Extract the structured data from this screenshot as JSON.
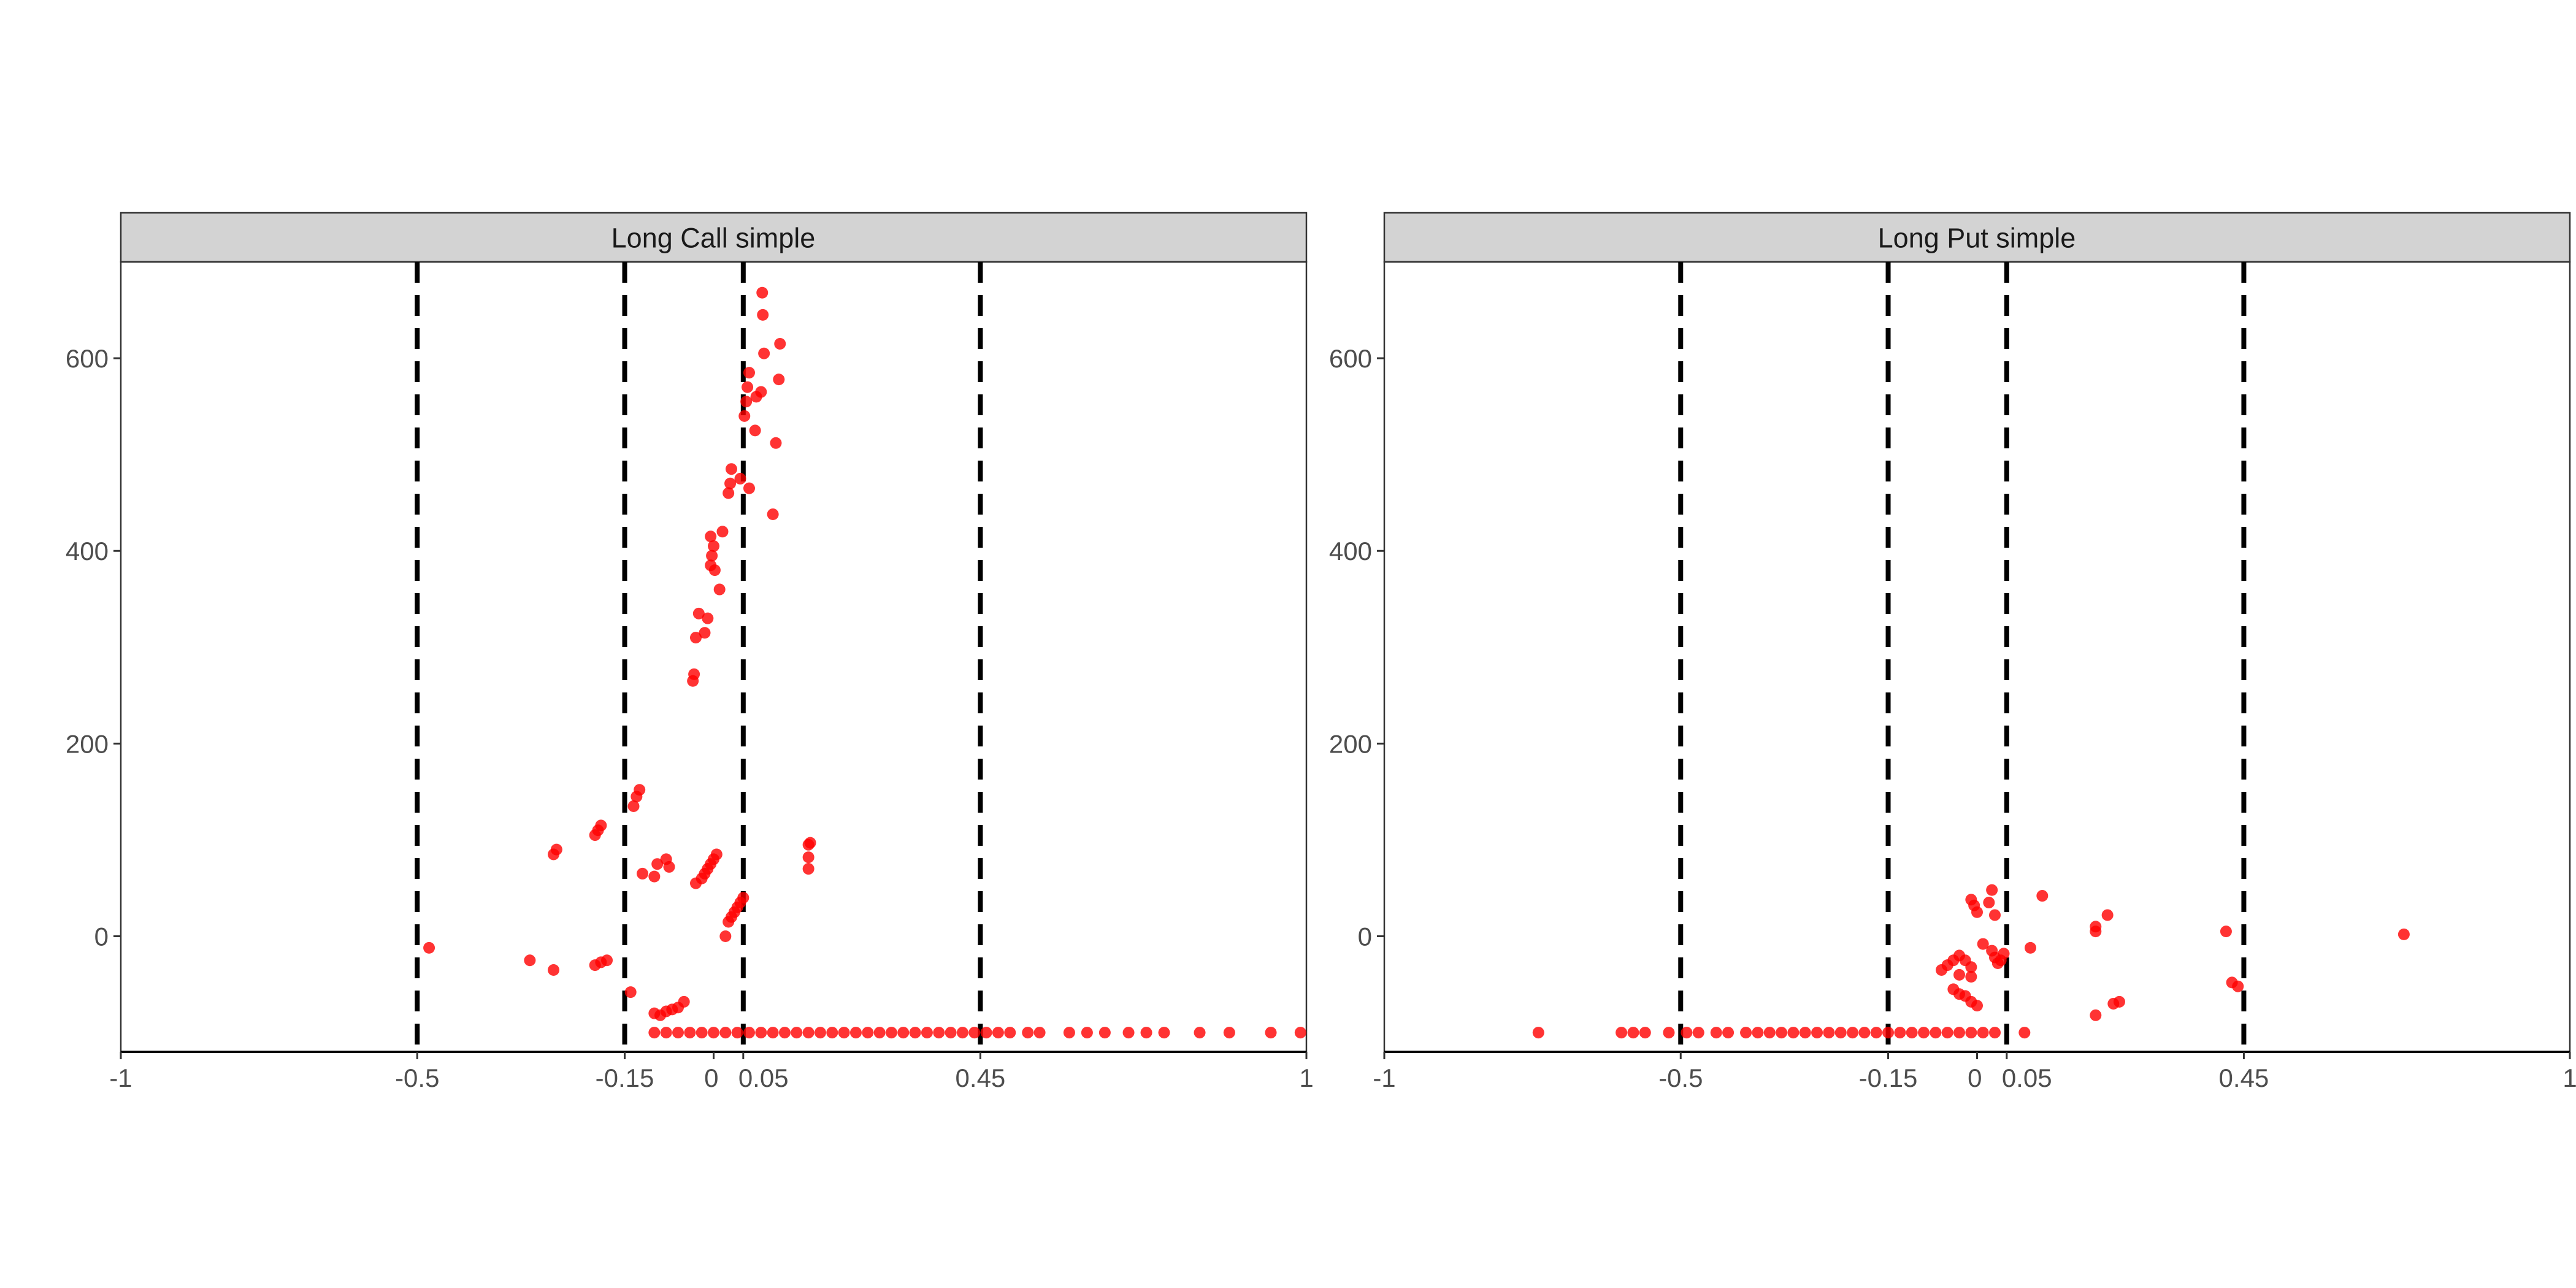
{
  "chart_data": {
    "type": "scatter",
    "x_ticks": [
      "-1",
      "-0.5",
      "-0.15",
      "0",
      "0.05",
      "0.45",
      "1"
    ],
    "x_tick_values": [
      -1,
      -0.5,
      -0.15,
      0,
      0.05,
      0.45,
      1
    ],
    "y_ticks": [
      "0",
      "200",
      "400",
      "600"
    ],
    "y_tick_values": [
      0,
      200,
      400,
      600
    ],
    "xlim": [
      -1,
      1
    ],
    "ylim": [
      -120,
      700
    ],
    "vlines": [
      -0.5,
      -0.15,
      0.05,
      0.45
    ],
    "vline_style": "dashed",
    "point_color": "#ff0000",
    "grid": false,
    "panels": [
      {
        "title": "Long Call simple",
        "points": [
          [
            -0.48,
            -12
          ],
          [
            -0.31,
            -25
          ],
          [
            -0.27,
            -35
          ],
          [
            -0.2,
            -30
          ],
          [
            -0.19,
            -27
          ],
          [
            -0.18,
            -25
          ],
          [
            -0.27,
            85
          ],
          [
            -0.265,
            90
          ],
          [
            -0.2,
            105
          ],
          [
            -0.195,
            110
          ],
          [
            -0.19,
            115
          ],
          [
            -0.135,
            135
          ],
          [
            -0.13,
            145
          ],
          [
            -0.125,
            152
          ],
          [
            -0.14,
            -58
          ],
          [
            -0.12,
            65
          ],
          [
            -0.1,
            62
          ],
          [
            -0.095,
            75
          ],
          [
            -0.08,
            80
          ],
          [
            -0.075,
            72
          ],
          [
            -0.1,
            -80
          ],
          [
            -0.09,
            -82
          ],
          [
            -0.08,
            -78
          ],
          [
            -0.07,
            -76
          ],
          [
            -0.06,
            -74
          ],
          [
            -0.05,
            -68
          ],
          [
            -0.035,
            265
          ],
          [
            -0.033,
            272
          ],
          [
            -0.03,
            310
          ],
          [
            -0.025,
            335
          ],
          [
            -0.015,
            315
          ],
          [
            -0.01,
            330
          ],
          [
            -0.005,
            385
          ],
          [
            -0.003,
            395
          ],
          [
            0.0,
            405
          ],
          [
            0.002,
            380
          ],
          [
            -0.005,
            415
          ],
          [
            0.01,
            360
          ],
          [
            0.015,
            420
          ],
          [
            0.025,
            460
          ],
          [
            0.028,
            470
          ],
          [
            0.03,
            485
          ],
          [
            0.045,
            475
          ],
          [
            0.06,
            465
          ],
          [
            0.052,
            540
          ],
          [
            0.055,
            555
          ],
          [
            0.057,
            570
          ],
          [
            0.06,
            585
          ],
          [
            0.07,
            525
          ],
          [
            0.072,
            560
          ],
          [
            0.08,
            565
          ],
          [
            0.085,
            605
          ],
          [
            0.083,
            645
          ],
          [
            0.082,
            668
          ],
          [
            0.1,
            438
          ],
          [
            0.105,
            512
          ],
          [
            0.11,
            578
          ],
          [
            0.112,
            615
          ],
          [
            -0.02,
            60
          ],
          [
            -0.015,
            65
          ],
          [
            -0.01,
            70
          ],
          [
            -0.005,
            75
          ],
          [
            0.0,
            80
          ],
          [
            0.005,
            85
          ],
          [
            -0.03,
            55
          ],
          [
            0.02,
            0
          ],
          [
            0.025,
            15
          ],
          [
            0.03,
            20
          ],
          [
            0.035,
            25
          ],
          [
            0.04,
            30
          ],
          [
            0.045,
            35
          ],
          [
            0.05,
            40
          ],
          [
            0.16,
            70
          ],
          [
            0.16,
            82
          ],
          [
            0.16,
            95
          ],
          [
            0.163,
            97
          ],
          [
            -0.1,
            -100
          ],
          [
            -0.08,
            -100
          ],
          [
            -0.06,
            -100
          ],
          [
            -0.04,
            -100
          ],
          [
            -0.02,
            -100
          ],
          [
            0.0,
            -100
          ],
          [
            0.02,
            -100
          ],
          [
            0.04,
            -100
          ],
          [
            0.06,
            -100
          ],
          [
            0.08,
            -100
          ],
          [
            0.1,
            -100
          ],
          [
            0.12,
            -100
          ],
          [
            0.14,
            -100
          ],
          [
            0.16,
            -100
          ],
          [
            0.18,
            -100
          ],
          [
            0.2,
            -100
          ],
          [
            0.22,
            -100
          ],
          [
            0.24,
            -100
          ],
          [
            0.26,
            -100
          ],
          [
            0.28,
            -100
          ],
          [
            0.3,
            -100
          ],
          [
            0.32,
            -100
          ],
          [
            0.34,
            -100
          ],
          [
            0.36,
            -100
          ],
          [
            0.38,
            -100
          ],
          [
            0.4,
            -100
          ],
          [
            0.42,
            -100
          ],
          [
            0.44,
            -100
          ],
          [
            0.46,
            -100
          ],
          [
            0.48,
            -100
          ],
          [
            0.5,
            -100
          ],
          [
            0.53,
            -100
          ],
          [
            0.55,
            -100
          ],
          [
            0.6,
            -100
          ],
          [
            0.63,
            -100
          ],
          [
            0.66,
            -100
          ],
          [
            0.7,
            -100
          ],
          [
            0.73,
            -100
          ],
          [
            0.76,
            -100
          ],
          [
            0.82,
            -100
          ],
          [
            0.87,
            -100
          ],
          [
            0.94,
            -100
          ],
          [
            0.99,
            -100
          ]
        ]
      },
      {
        "title": "Long Put simple",
        "points": [
          [
            -0.74,
            -100
          ],
          [
            -0.6,
            -100
          ],
          [
            -0.58,
            -100
          ],
          [
            -0.56,
            -100
          ],
          [
            -0.52,
            -100
          ],
          [
            -0.49,
            -100
          ],
          [
            -0.47,
            -100
          ],
          [
            -0.44,
            -100
          ],
          [
            -0.42,
            -100
          ],
          [
            -0.39,
            -100
          ],
          [
            -0.37,
            -100
          ],
          [
            -0.35,
            -100
          ],
          [
            -0.33,
            -100
          ],
          [
            -0.31,
            -100
          ],
          [
            -0.29,
            -100
          ],
          [
            -0.27,
            -100
          ],
          [
            -0.25,
            -100
          ],
          [
            -0.23,
            -100
          ],
          [
            -0.21,
            -100
          ],
          [
            -0.19,
            -100
          ],
          [
            -0.17,
            -100
          ],
          [
            -0.15,
            -100
          ],
          [
            -0.13,
            -100
          ],
          [
            -0.11,
            -100
          ],
          [
            -0.09,
            -100
          ],
          [
            -0.07,
            -100
          ],
          [
            -0.05,
            -100
          ],
          [
            -0.03,
            -100
          ],
          [
            -0.01,
            -100
          ],
          [
            0.01,
            -100
          ],
          [
            0.03,
            -100
          ],
          [
            -0.06,
            -35
          ],
          [
            -0.05,
            -30
          ],
          [
            -0.04,
            -25
          ],
          [
            -0.03,
            -20
          ],
          [
            -0.02,
            -25
          ],
          [
            -0.01,
            -32
          ],
          [
            -0.04,
            -55
          ],
          [
            -0.03,
            -60
          ],
          [
            -0.02,
            -62
          ],
          [
            -0.01,
            -68
          ],
          [
            0.0,
            -72
          ],
          [
            -0.03,
            -40
          ],
          [
            -0.01,
            -42
          ],
          [
            -0.01,
            38
          ],
          [
            -0.005,
            32
          ],
          [
            0.0,
            25
          ],
          [
            0.02,
            35
          ],
          [
            0.025,
            48
          ],
          [
            0.03,
            22
          ],
          [
            0.01,
            -8
          ],
          [
            0.025,
            -15
          ],
          [
            0.03,
            -22
          ],
          [
            0.035,
            -28
          ],
          [
            0.04,
            -25
          ],
          [
            0.045,
            -18
          ],
          [
            0.09,
            -12
          ],
          [
            0.08,
            -100
          ],
          [
            0.11,
            42
          ],
          [
            0.2,
            5
          ],
          [
            0.2,
            10
          ],
          [
            0.22,
            22
          ],
          [
            0.2,
            -82
          ],
          [
            0.23,
            -70
          ],
          [
            0.24,
            -68
          ],
          [
            0.42,
            5
          ],
          [
            0.43,
            -48
          ],
          [
            0.44,
            -52
          ],
          [
            0.72,
            2
          ]
        ]
      }
    ]
  }
}
